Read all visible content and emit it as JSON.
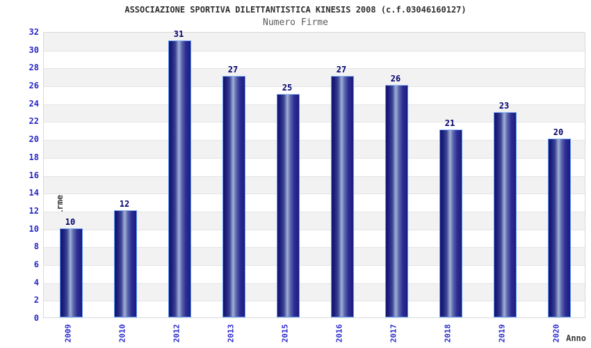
{
  "chart_data": {
    "type": "bar",
    "title": "ASSOCIAZIONE SPORTIVA DILETTANTISTICA KINESIS 2008 (c.f.03046160127)",
    "subtitle": "Numero Firme",
    "categories": [
      "2009",
      "2010",
      "2012",
      "2013",
      "2015",
      "2016",
      "2017",
      "2018",
      "2019",
      "2020"
    ],
    "values": [
      10,
      12,
      31,
      27,
      25,
      27,
      26,
      21,
      23,
      20
    ],
    "xlabel": "Anno",
    "ylabel": "Firme",
    "ylim": [
      0,
      32
    ],
    "ytick_step": 2,
    "yticks": [
      0,
      2,
      4,
      6,
      8,
      10,
      12,
      14,
      16,
      18,
      20,
      22,
      24,
      26,
      28,
      30,
      32
    ],
    "grid": true,
    "legend": "none",
    "colors": {
      "bar_dark": "#1b1b78",
      "bar_highlight": "#a2afd7",
      "bar_border": "#5d9cf5",
      "tick_label": "#2727cc",
      "value_label": "#00006e",
      "band_gray": "#f2f2f2",
      "band_white": "#ffffff",
      "gridline": "#e4e4e4",
      "title_text": "#2e2e2e",
      "subtitle_text": "#5a5a5a",
      "axis_title_text": "#3a3a3a"
    }
  }
}
